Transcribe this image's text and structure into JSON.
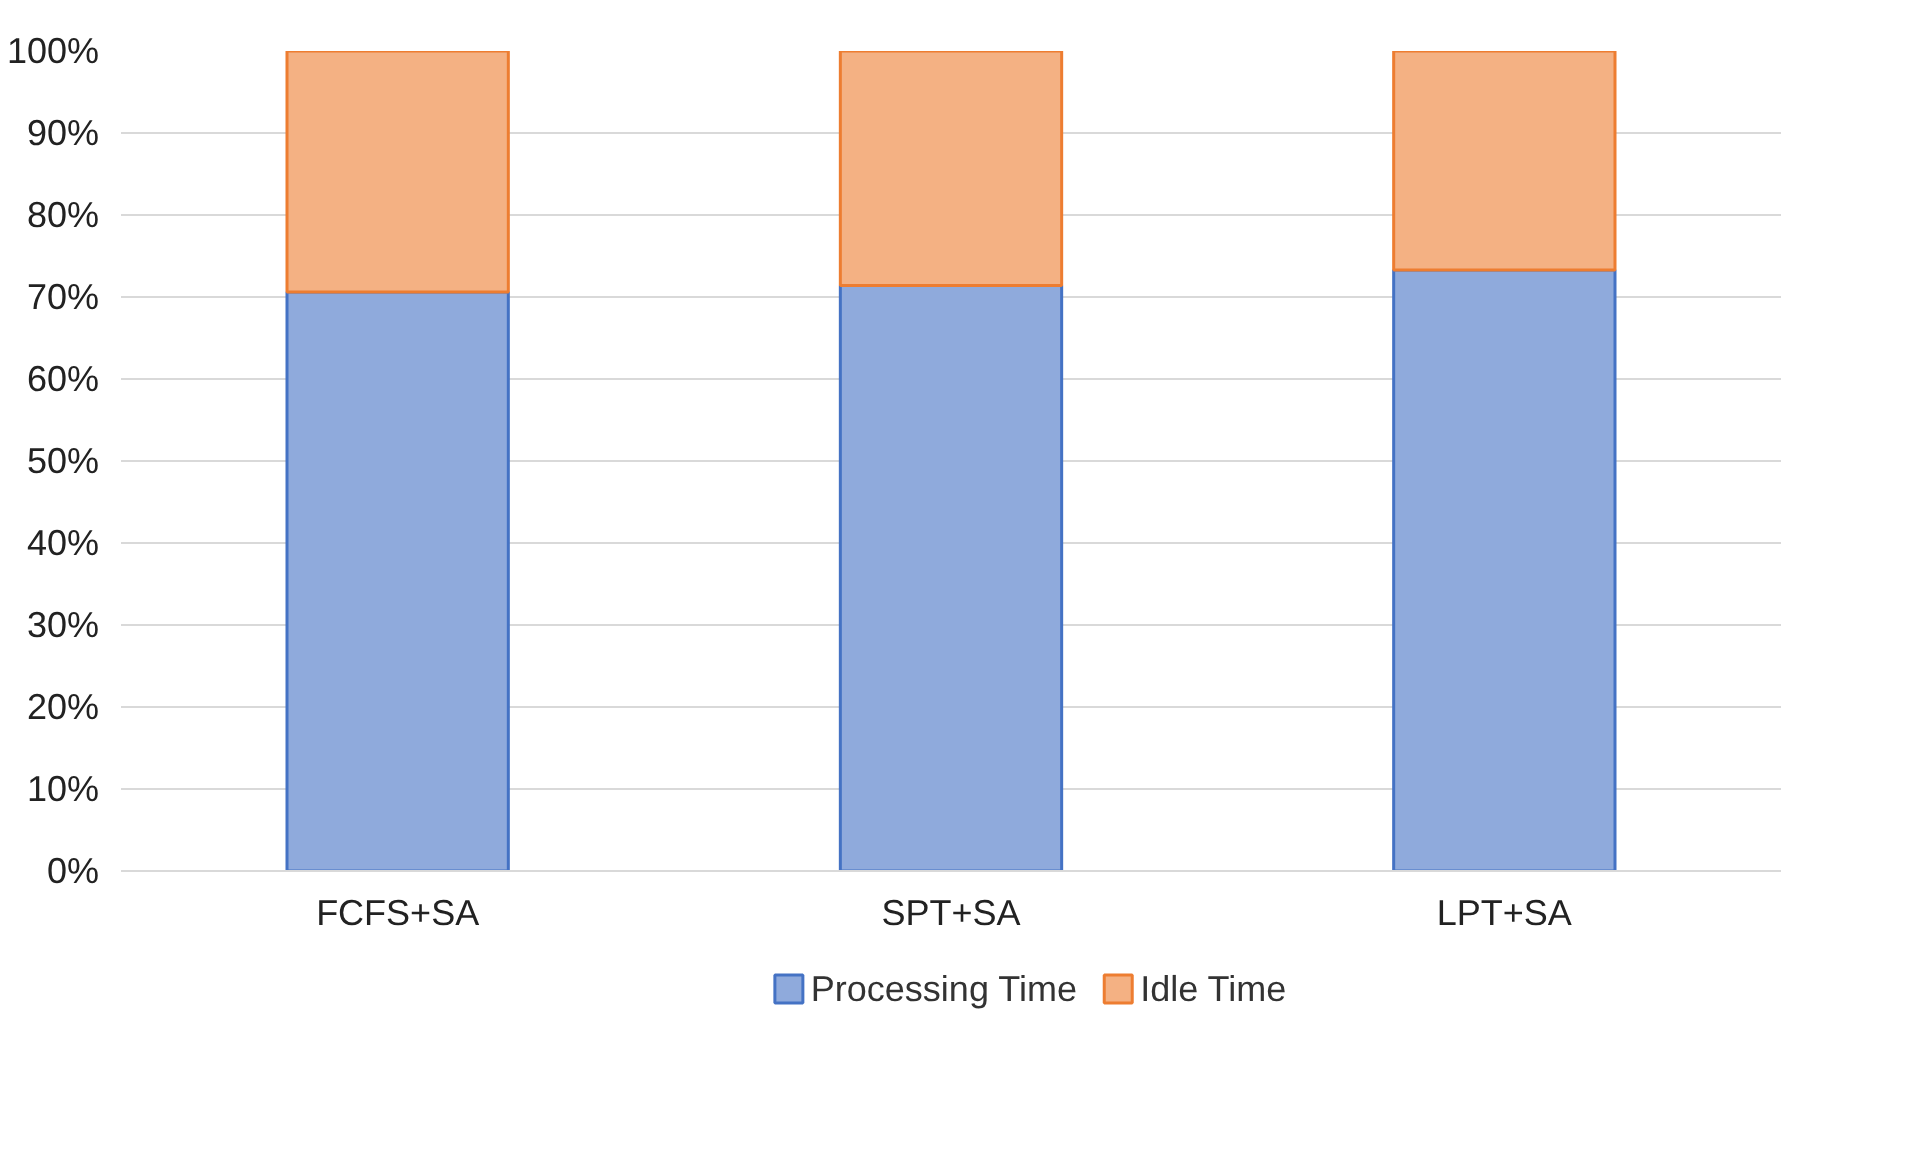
{
  "chart_data": {
    "type": "bar",
    "stacked": true,
    "categories": [
      "FCFS+SA",
      "SPT+SA",
      "LPT+SA"
    ],
    "series": [
      {
        "name": "Processing Time",
        "color": "#8faadc",
        "values": [
          70.6,
          71.4,
          73.3
        ]
      },
      {
        "name": "Idle Time",
        "color": "#f4b183",
        "values": [
          29.4,
          28.6,
          26.7
        ]
      }
    ],
    "ylim": [
      0,
      100
    ],
    "yticks": [
      {
        "value": 0,
        "label": "0%"
      },
      {
        "value": 10,
        "label": "10%"
      },
      {
        "value": 20,
        "label": "20%"
      },
      {
        "value": 30,
        "label": "30%"
      },
      {
        "value": 40,
        "label": "40%"
      },
      {
        "value": 50,
        "label": "50%"
      },
      {
        "value": 60,
        "label": "60%"
      },
      {
        "value": 70,
        "label": "70%"
      },
      {
        "value": 80,
        "label": "80%"
      },
      {
        "value": 90,
        "label": "90%"
      },
      {
        "value": 100,
        "label": "100%"
      }
    ],
    "grid": "y",
    "legend": "bottom"
  }
}
